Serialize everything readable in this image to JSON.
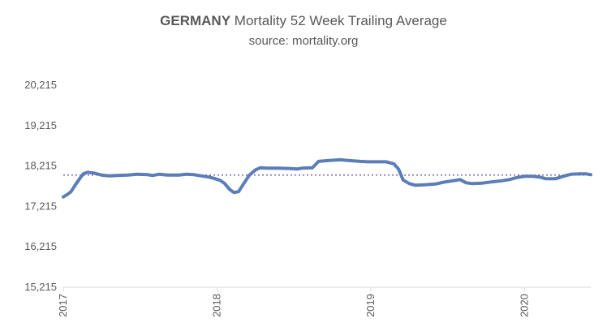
{
  "chart_data": {
    "type": "line",
    "title_bold": "GERMANY",
    "title_rest": " Mortality 52 Week Trailing Average",
    "subtitle": "source: mortality.org",
    "xlabel": "",
    "ylabel": "",
    "xlim": [
      2017.0,
      2020.43
    ],
    "ylim": [
      15215,
      20215
    ],
    "yticks": [
      "20,215",
      "19,215",
      "18,215",
      "17,215",
      "16,215",
      "15,215"
    ],
    "ytick_values": [
      20215,
      19215,
      18215,
      17215,
      16215,
      15215
    ],
    "xticks": [
      "2017",
      "2018",
      "2019",
      "2020"
    ],
    "xtick_values": [
      2017,
      2018,
      2019,
      2020
    ],
    "grid": false,
    "legend": "none",
    "colors": {
      "series": "#5B7DB8",
      "reference": "#8064A2",
      "axis": "#D9D9D9",
      "text": "#595959"
    },
    "reference_line": {
      "style": "dotted",
      "value": 17990
    },
    "series": [
      {
        "values": [
          [
            2017.0,
            17450
          ],
          [
            2017.03,
            17520
          ],
          [
            2017.05,
            17580
          ],
          [
            2017.08,
            17760
          ],
          [
            2017.11,
            17920
          ],
          [
            2017.13,
            18020
          ],
          [
            2017.16,
            18060
          ],
          [
            2017.2,
            18040
          ],
          [
            2017.25,
            17990
          ],
          [
            2017.3,
            17970
          ],
          [
            2017.35,
            17980
          ],
          [
            2017.42,
            17990
          ],
          [
            2017.48,
            18010
          ],
          [
            2017.55,
            18000
          ],
          [
            2017.58,
            17980
          ],
          [
            2017.62,
            18010
          ],
          [
            2017.68,
            17990
          ],
          [
            2017.75,
            17990
          ],
          [
            2017.8,
            18010
          ],
          [
            2017.85,
            18000
          ],
          [
            2017.9,
            17970
          ],
          [
            2017.95,
            17940
          ],
          [
            2017.98,
            17910
          ],
          [
            2018.02,
            17860
          ],
          [
            2018.05,
            17780
          ],
          [
            2018.08,
            17640
          ],
          [
            2018.11,
            17560
          ],
          [
            2018.14,
            17580
          ],
          [
            2018.17,
            17760
          ],
          [
            2018.21,
            17990
          ],
          [
            2018.25,
            18120
          ],
          [
            2018.28,
            18170
          ],
          [
            2018.33,
            18160
          ],
          [
            2018.4,
            18160
          ],
          [
            2018.48,
            18150
          ],
          [
            2018.52,
            18140
          ],
          [
            2018.55,
            18160
          ],
          [
            2018.62,
            18170
          ],
          [
            2018.66,
            18330
          ],
          [
            2018.72,
            18350
          ],
          [
            2018.8,
            18370
          ],
          [
            2018.86,
            18350
          ],
          [
            2018.93,
            18330
          ],
          [
            2018.98,
            18320
          ],
          [
            2019.03,
            18320
          ],
          [
            2019.1,
            18320
          ],
          [
            2019.15,
            18270
          ],
          [
            2019.18,
            18140
          ],
          [
            2019.21,
            17870
          ],
          [
            2019.25,
            17780
          ],
          [
            2019.29,
            17740
          ],
          [
            2019.35,
            17750
          ],
          [
            2019.42,
            17770
          ],
          [
            2019.48,
            17820
          ],
          [
            2019.55,
            17860
          ],
          [
            2019.58,
            17880
          ],
          [
            2019.62,
            17800
          ],
          [
            2019.66,
            17780
          ],
          [
            2019.72,
            17790
          ],
          [
            2019.78,
            17820
          ],
          [
            2019.85,
            17850
          ],
          [
            2019.9,
            17880
          ],
          [
            2019.95,
            17930
          ],
          [
            2020.0,
            17960
          ],
          [
            2020.05,
            17960
          ],
          [
            2020.1,
            17940
          ],
          [
            2020.14,
            17900
          ],
          [
            2020.2,
            17900
          ],
          [
            2020.25,
            17960
          ],
          [
            2020.3,
            18010
          ],
          [
            2020.36,
            18020
          ],
          [
            2020.4,
            18020
          ],
          [
            2020.43,
            18000
          ]
        ]
      }
    ]
  }
}
